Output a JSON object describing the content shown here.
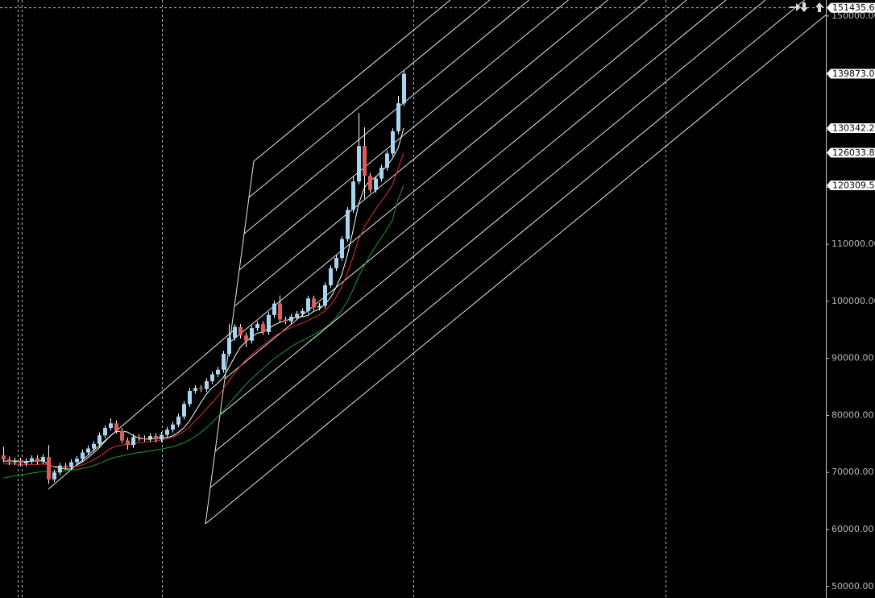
{
  "chart_data": {
    "type": "candlestick",
    "ylim": [
      48000,
      152800
    ],
    "yticks": [
      {
        "value": 50000,
        "label": "50000.00"
      },
      {
        "value": 60000,
        "label": "60000.00"
      },
      {
        "value": 70000,
        "label": "70000.00"
      },
      {
        "value": 80000,
        "label": "80000.00"
      },
      {
        "value": 90000,
        "label": "90000.00"
      },
      {
        "value": 100000,
        "label": "100000.00"
      },
      {
        "value": 110000,
        "label": "110000.00"
      },
      {
        "value": 120000,
        "label": "120000.00"
      },
      {
        "value": 130000,
        "label": "130000.00"
      },
      {
        "value": 140000,
        "label": "140000.00"
      },
      {
        "value": 150000,
        "label": "150000.00"
      }
    ],
    "up_color": "#a6d6f2",
    "down_color": "#e05a5a",
    "wick_color": "#ffffff",
    "open": [
      73000,
      72300,
      71800,
      72100,
      71600,
      72000,
      72500,
      71900,
      72700,
      68800,
      70000,
      71200,
      71000,
      71800,
      72400,
      73500,
      74200,
      75000,
      76500,
      77800,
      78600,
      77300,
      75600,
      74800,
      76200,
      76000,
      75900,
      76400,
      75800,
      76600,
      77500,
      78400,
      79800,
      82000,
      84300,
      84800,
      84600,
      86000,
      87200,
      88000,
      90800,
      93600,
      95500,
      94000,
      93100,
      95300,
      96000,
      94600,
      97600,
      99600,
      96800,
      96500,
      97300,
      97800,
      98300,
      100500,
      98900,
      99200,
      102800,
      105800,
      107600,
      110900,
      116000,
      121000,
      127200,
      122000,
      119500,
      121500,
      123400,
      125900,
      129800,
      134700
    ],
    "high": [
      74500,
      72800,
      72600,
      72600,
      72500,
      73000,
      73000,
      73200,
      74800,
      70500,
      71700,
      71700,
      72300,
      72900,
      74000,
      74700,
      75500,
      77000,
      78300,
      79500,
      79100,
      77800,
      76100,
      76700,
      76700,
      76500,
      76900,
      76900,
      77100,
      78000,
      78900,
      80300,
      82500,
      84800,
      85300,
      85300,
      86500,
      87700,
      88500,
      91300,
      96000,
      96000,
      96000,
      94500,
      95800,
      96500,
      96500,
      98100,
      100100,
      101000,
      97300,
      97800,
      98300,
      98800,
      101000,
      101000,
      99700,
      103300,
      106300,
      108100,
      111400,
      116500,
      121800,
      133000,
      130500,
      122500,
      122000,
      123900,
      126400,
      130300,
      136000,
      140400
    ],
    "low": [
      71800,
      71300,
      71300,
      71100,
      71100,
      71500,
      71400,
      71400,
      68000,
      68300,
      69500,
      70500,
      70500,
      71300,
      71900,
      73000,
      73700,
      74500,
      76000,
      77300,
      76800,
      75100,
      74000,
      74300,
      75500,
      75400,
      75400,
      75300,
      75300,
      76100,
      77000,
      77900,
      79300,
      81500,
      83800,
      84100,
      84100,
      85500,
      86700,
      87500,
      90300,
      93100,
      93500,
      92000,
      92600,
      94800,
      94100,
      94100,
      97100,
      96300,
      96000,
      96000,
      96800,
      97300,
      97800,
      98400,
      98400,
      98700,
      102300,
      105300,
      107100,
      110400,
      115500,
      120500,
      118000,
      119000,
      119000,
      121000,
      122900,
      125400,
      129300,
      134200
    ],
    "close": [
      72300,
      71800,
      72100,
      71600,
      72000,
      72500,
      71900,
      72700,
      68800,
      70000,
      71200,
      71000,
      71800,
      72400,
      73500,
      74200,
      75000,
      76500,
      77800,
      78600,
      77300,
      75600,
      74800,
      76200,
      76000,
      75900,
      76400,
      75800,
      76600,
      77500,
      78400,
      79800,
      82000,
      84300,
      84800,
      84600,
      86000,
      87200,
      88000,
      90800,
      93600,
      95500,
      94000,
      93100,
      95300,
      96000,
      94600,
      97600,
      99600,
      96800,
      96500,
      97300,
      97800,
      98300,
      100500,
      98900,
      99200,
      102800,
      105800,
      107600,
      110900,
      116000,
      121000,
      127200,
      122000,
      119500,
      121500,
      123400,
      125900,
      129800,
      134700,
      139873
    ],
    "series": [
      {
        "color": "#ffffff",
        "values": [
          72000,
          72000,
          72000,
          71900,
          71900,
          72000,
          72000,
          72100,
          71400,
          71000,
          70800,
          70600,
          70600,
          71300,
          71800,
          72600,
          73400,
          74300,
          75400,
          76400,
          77200,
          77200,
          77100,
          76500,
          76000,
          75900,
          75800,
          76000,
          76100,
          76100,
          76400,
          77000,
          77800,
          79000,
          80600,
          82200,
          83700,
          84800,
          85600,
          86600,
          88400,
          90200,
          91900,
          92900,
          93700,
          94400,
          94600,
          95200,
          95800,
          96300,
          96600,
          96900,
          97200,
          97300,
          97500,
          98200,
          98600,
          99400,
          100600,
          102400,
          104600,
          108000,
          112300,
          117000,
          119800,
          121200,
          121700,
          122700,
          123700,
          125000,
          126800,
          130342.2
        ]
      },
      {
        "color": "#e03030",
        "values": [
          71500,
          71500,
          71500,
          71400,
          71400,
          71400,
          71400,
          71500,
          71300,
          71100,
          71000,
          70900,
          70900,
          71100,
          71300,
          71700,
          72200,
          72800,
          73500,
          74200,
          74600,
          74800,
          75000,
          75100,
          75200,
          75300,
          75400,
          75500,
          75700,
          75900,
          76200,
          76600,
          77200,
          78000,
          79000,
          80000,
          81100,
          82200,
          83300,
          84600,
          86000,
          87400,
          88600,
          89700,
          90600,
          91500,
          92200,
          93000,
          93800,
          94400,
          94900,
          95400,
          95800,
          96200,
          96600,
          97100,
          97600,
          98300,
          99300,
          100700,
          102500,
          104900,
          107700,
          110800,
          112900,
          114600,
          116100,
          117500,
          118800,
          120400,
          123200,
          126033.8
        ]
      },
      {
        "color": "#1f9a2a",
        "values": [
          69000,
          69200,
          69400,
          69500,
          69700,
          69900,
          70000,
          70200,
          70200,
          70200,
          70200,
          70300,
          70400,
          70500,
          70700,
          70900,
          71200,
          71600,
          72000,
          72400,
          72700,
          72900,
          73100,
          73300,
          73500,
          73600,
          73800,
          73900,
          74100,
          74300,
          74500,
          74800,
          75200,
          75700,
          76300,
          77000,
          77800,
          78700,
          79700,
          80800,
          82000,
          83200,
          84300,
          85400,
          86400,
          87300,
          88200,
          89100,
          89900,
          90600,
          91300,
          92000,
          92600,
          93100,
          93600,
          94100,
          94700,
          95300,
          96100,
          97100,
          98400,
          100000,
          102000,
          104300,
          106200,
          108000,
          109600,
          111100,
          112600,
          114200,
          117800,
          120309.5
        ]
      }
    ],
    "price_labels": [
      {
        "value": 151435.6,
        "label": "151435.6"
      },
      {
        "value": 139873,
        "label": "139873.0"
      },
      {
        "value": 130342.2,
        "label": "130342.2"
      },
      {
        "value": 126033.8,
        "label": "126033.8"
      },
      {
        "value": 120309.5,
        "label": "120309.5"
      }
    ],
    "grid": true
  }
}
